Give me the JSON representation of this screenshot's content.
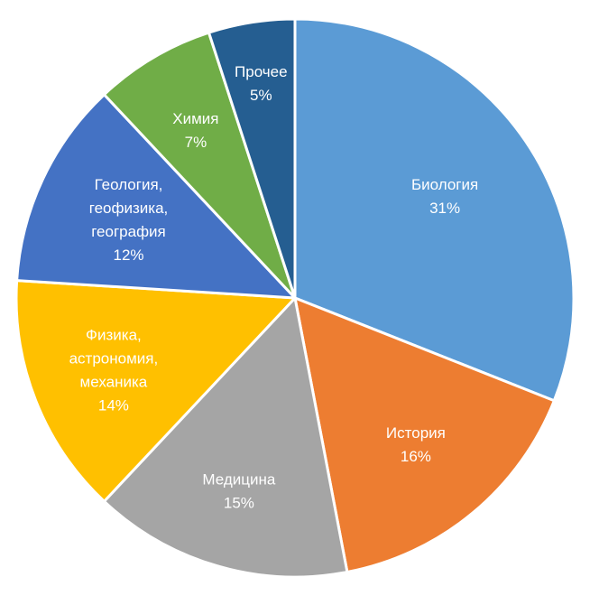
{
  "chart_data": {
    "type": "pie",
    "categories": [
      "Биология",
      "История",
      "Медицина",
      "Физика, астрономия, механика",
      "Геология, геофизика, география",
      "Химия",
      "Прочее"
    ],
    "values": [
      31,
      16,
      15,
      14,
      12,
      7,
      5
    ],
    "value_labels": [
      "31%",
      "16%",
      "15%",
      "14%",
      "12%",
      "7%",
      "5%"
    ],
    "label_lines": [
      [
        "Биология"
      ],
      [
        "История"
      ],
      [
        "Медицина"
      ],
      [
        "Физика,",
        "астрономия,",
        "механика"
      ],
      [
        "Геология,",
        "геофизика,",
        "география"
      ],
      [
        "Химия"
      ],
      [
        "Прочее"
      ]
    ],
    "colors": [
      "#5b9bd5",
      "#ed7d31",
      "#a5a5a5",
      "#ffc000",
      "#4472c4",
      "#70ad47",
      "#255e91"
    ],
    "start_angle": "12 o'clock",
    "direction": "clockwise",
    "legend": "none",
    "title": ""
  }
}
